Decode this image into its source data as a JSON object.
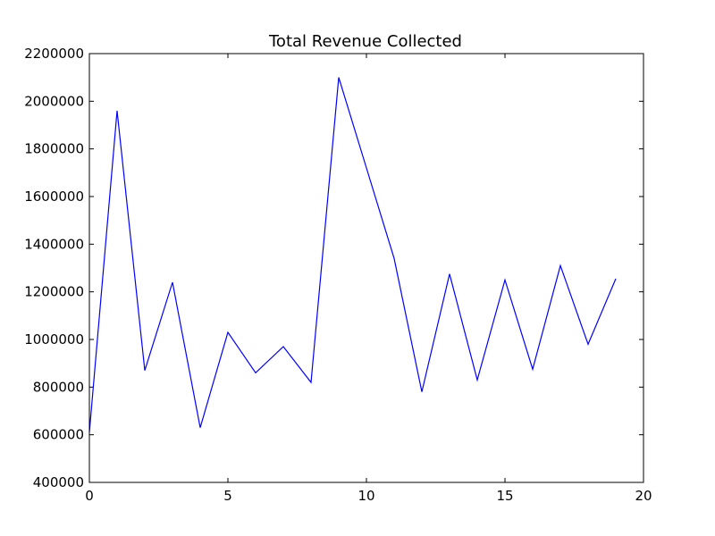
{
  "chart_data": {
    "type": "line",
    "title": "Total Revenue Collected",
    "xlabel": "",
    "ylabel": "",
    "xlim": [
      0,
      20
    ],
    "ylim": [
      400000,
      2200000
    ],
    "x_ticks": [
      0,
      5,
      10,
      15,
      20
    ],
    "y_ticks": [
      400000,
      600000,
      800000,
      1000000,
      1200000,
      1400000,
      1600000,
      1800000,
      2000000,
      2200000
    ],
    "grid": false,
    "legend": "none",
    "series": [
      {
        "color": "#0000ff",
        "x": [
          0,
          1,
          2,
          3,
          4,
          5,
          6,
          7,
          8,
          9,
          10,
          11,
          12,
          13,
          14,
          15,
          16,
          17,
          18,
          19
        ],
        "values": [
          610000,
          1960000,
          870000,
          1240000,
          630000,
          1030000,
          860000,
          970000,
          820000,
          2100000,
          1720000,
          1340000,
          780000,
          1275000,
          830000,
          1250000,
          875000,
          1310000,
          980000,
          1255000
        ]
      }
    ]
  }
}
